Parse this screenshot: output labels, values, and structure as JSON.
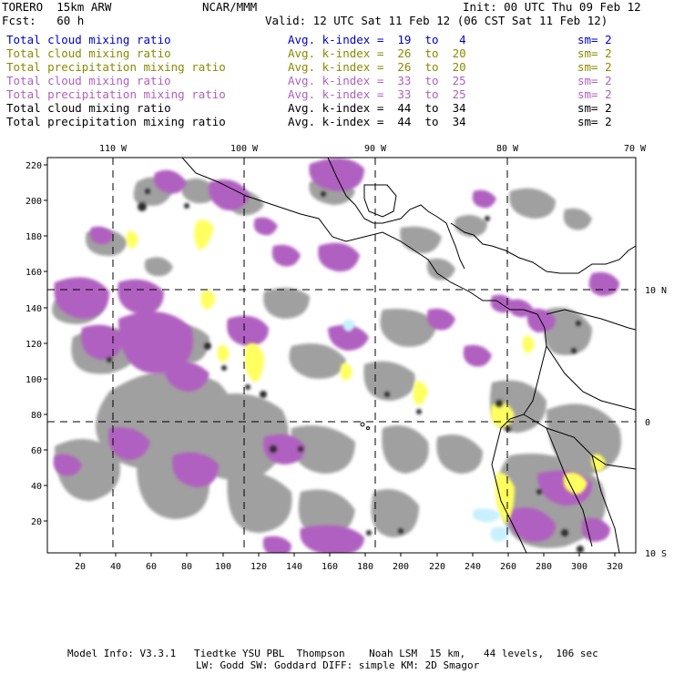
{
  "header": {
    "model": "TORERO  15km ARW",
    "org": "NCAR/MMM",
    "init": "Init: 00 UTC Thu 09 Feb 12",
    "fcst": "Fcst:   60 h",
    "valid": "Valid: 12 UTC Sat 11 Feb 12 (06 CST Sat 11 Feb 12)"
  },
  "legend": [
    {
      "field": "Total cloud mixing ratio",
      "kindex": "Avg. k-index =  19  to   4",
      "sm": "sm= 2",
      "color": "#0000cc"
    },
    {
      "field": "Total cloud mixing ratio",
      "kindex": "Avg. k-index =  26  to  20",
      "sm": "sm= 2",
      "color": "#8a8a00"
    },
    {
      "field": "Total precipitation mixing ratio",
      "kindex": "Avg. k-index =  26  to  20",
      "sm": "sm= 2",
      "color": "#8a8a00"
    },
    {
      "field": "Total cloud mixing ratio",
      "kindex": "Avg. k-index =  33  to  25",
      "sm": "sm= 2",
      "color": "#b060c0"
    },
    {
      "field": "Total precipitation mixing ratio",
      "kindex": "Avg. k-index =  33  to  25",
      "sm": "sm= 2",
      "color": "#b060c0"
    },
    {
      "field": "Total cloud mixing ratio",
      "kindex": "Avg. k-index =  44  to  34",
      "sm": "sm= 2",
      "color": "#000000"
    },
    {
      "field": "Total precipitation mixing ratio",
      "kindex": "Avg. k-index =  44  to  34",
      "sm": "sm= 2",
      "color": "#000000"
    }
  ],
  "axes": {
    "top_labels": [
      "110 W",
      "100 W",
      "90 W",
      "80 W",
      "70 W"
    ],
    "right_labels": [
      "10 N",
      "0",
      "10 S"
    ],
    "y_ticks": [
      "220",
      "200",
      "180",
      "160",
      "140",
      "120",
      "100",
      "80",
      "60",
      "40",
      "20"
    ],
    "x_ticks": [
      "20",
      "40",
      "60",
      "80",
      "100",
      "120",
      "140",
      "160",
      "180",
      "200",
      "220",
      "240",
      "260",
      "280",
      "300",
      "320"
    ]
  },
  "colors": {
    "gray": "#9a9a9a",
    "dark": "#3a3a3a",
    "purple": "#b060c0",
    "yellow": "#ffff60",
    "cyan": "#c8f0ff"
  },
  "footer": {
    "line1": "Model Info: V3.3.1   Tiedtke YSU PBL  Thompson    Noah LSM  15 km,   44 levels,  106 sec",
    "line2": "LW: Godd SW: Goddard DIFF: simple KM: 2D Smagor"
  }
}
